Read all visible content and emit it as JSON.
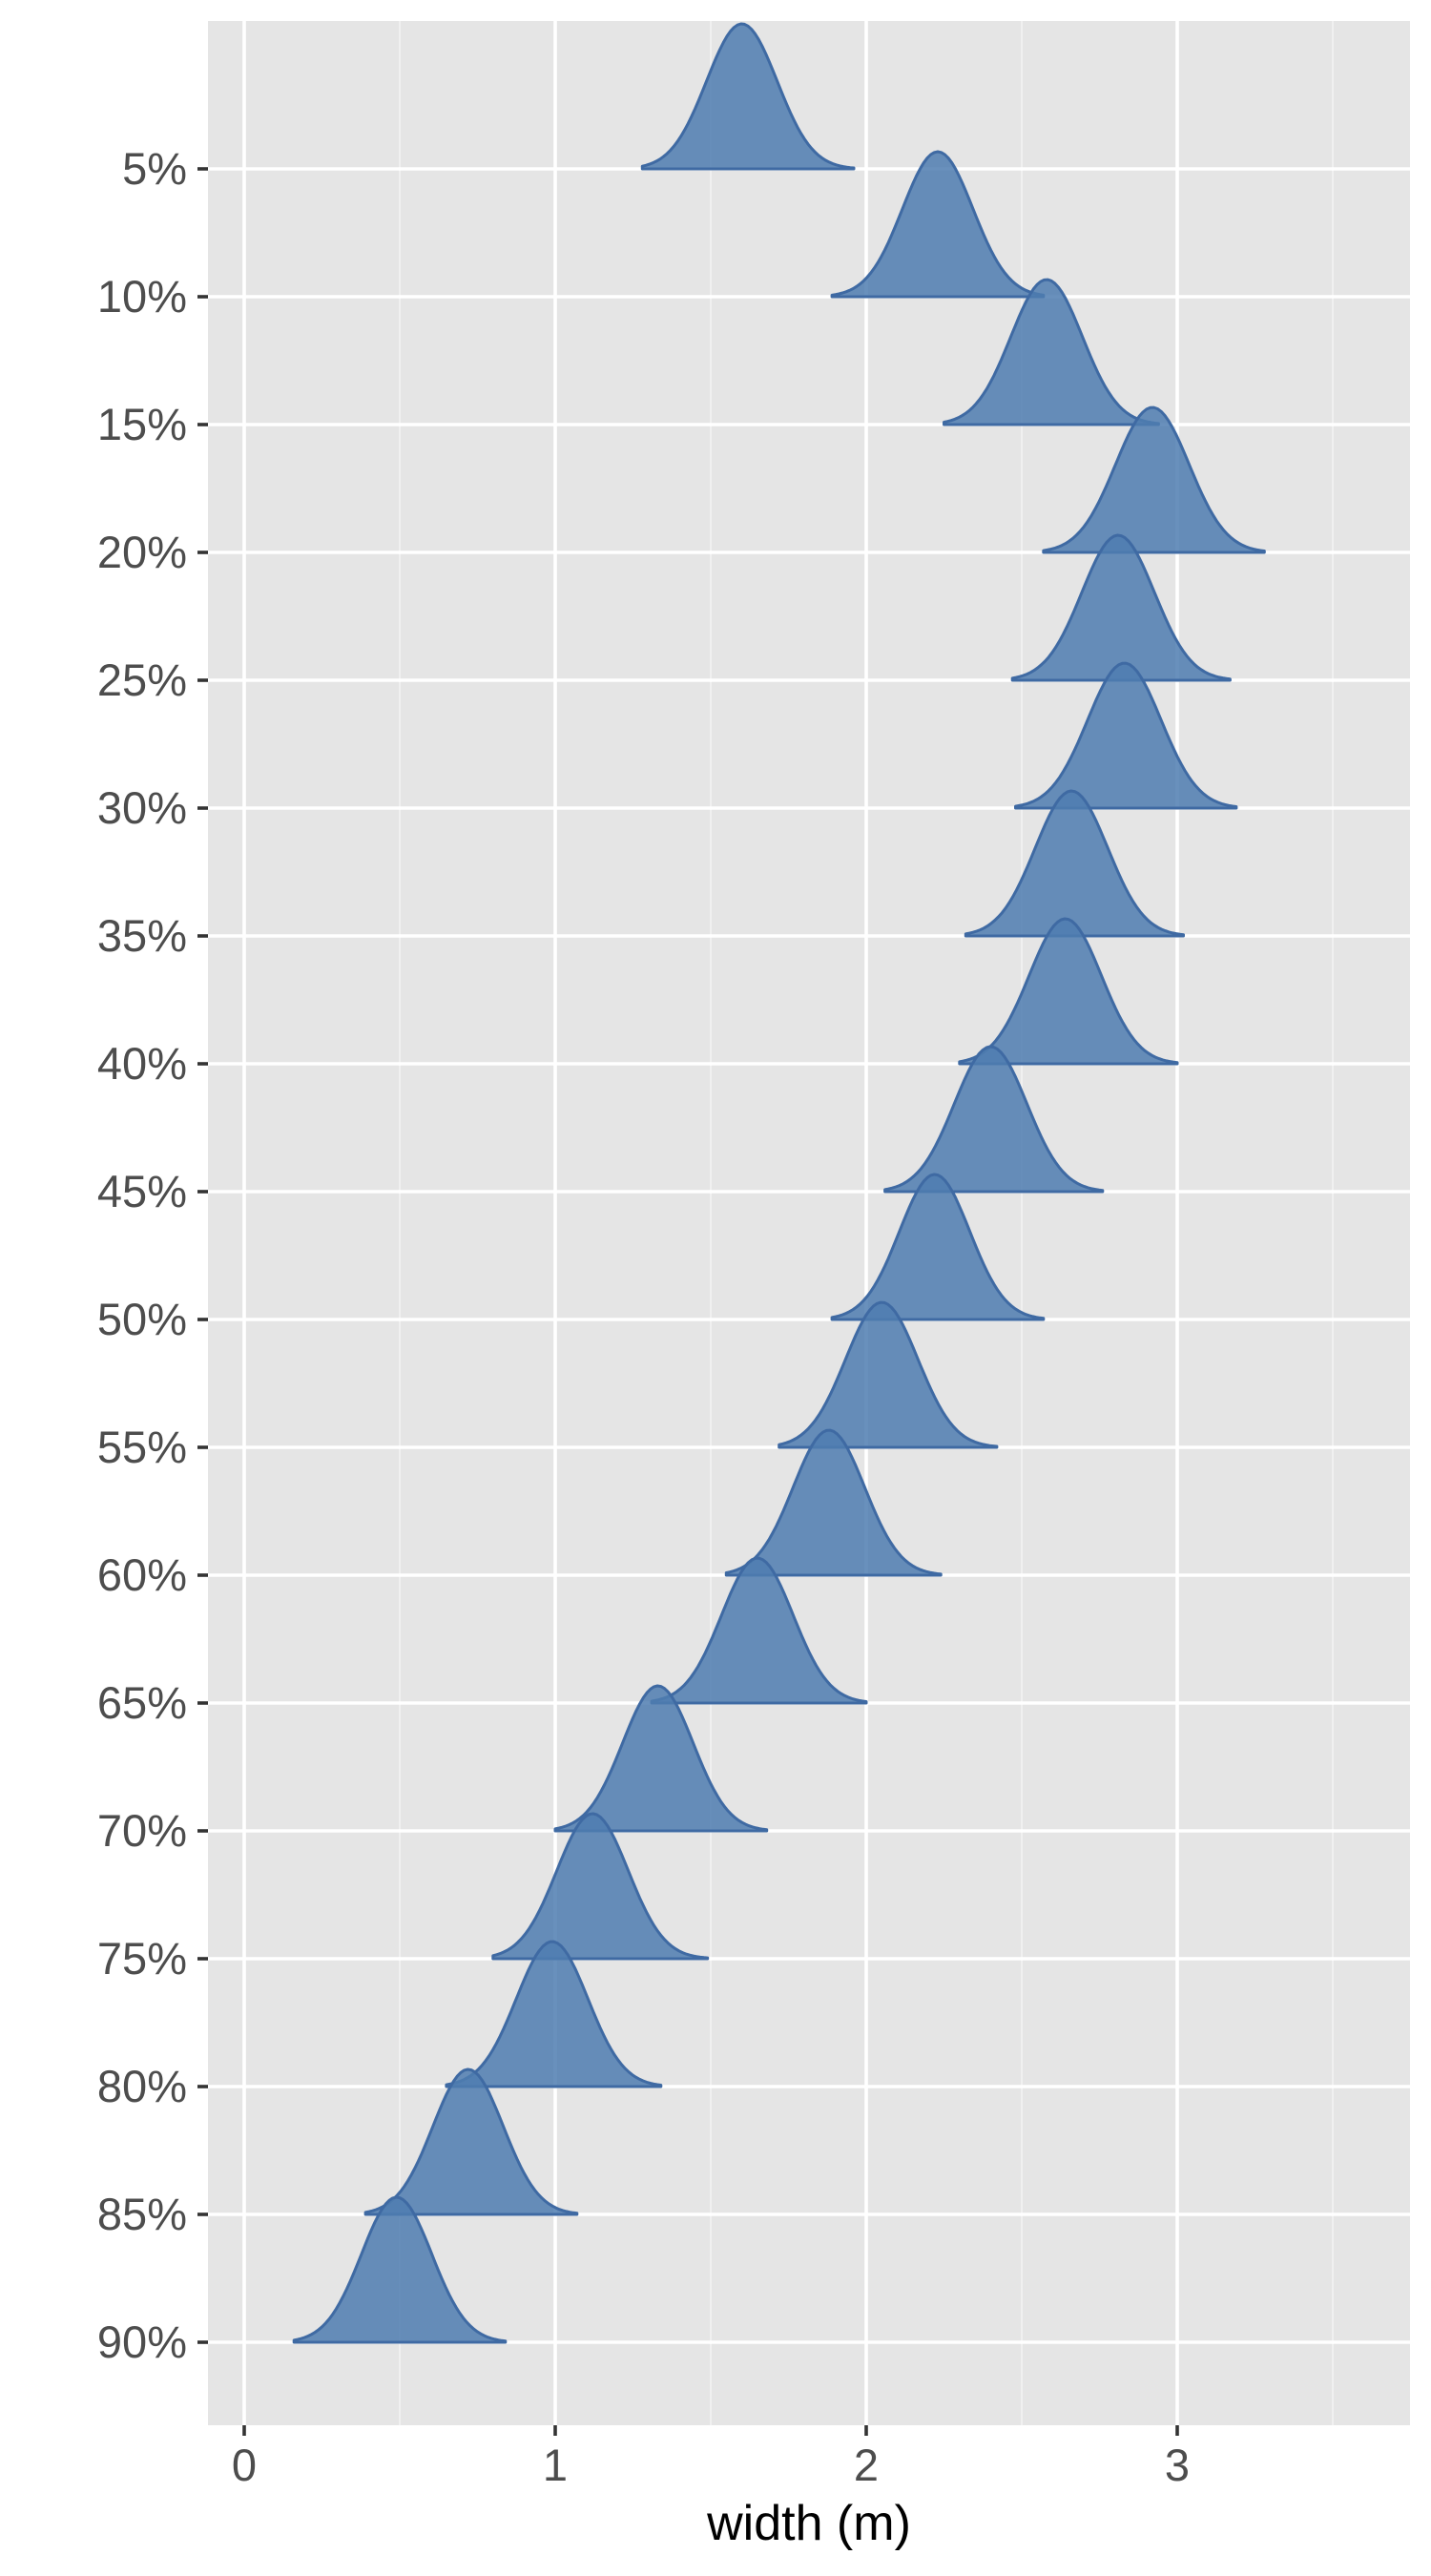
{
  "chart_data": {
    "type": "ridgeline",
    "xlabel": "width (m)",
    "ylabel": "",
    "xlim": [
      -0.12,
      3.75
    ],
    "xticks": [
      0,
      1,
      2,
      3
    ],
    "xtick_labels": [
      "0",
      "1",
      "2",
      "3"
    ],
    "categories": [
      "5%",
      "10%",
      "15%",
      "20%",
      "25%",
      "30%",
      "35%",
      "40%",
      "45%",
      "50%",
      "55%",
      "60%",
      "65%",
      "70%",
      "75%",
      "80%",
      "85%",
      "90%"
    ],
    "distributions": [
      {
        "category": "5%",
        "mode": 1.6,
        "min": 1.28,
        "max": 1.96
      },
      {
        "category": "10%",
        "mode": 2.23,
        "min": 1.89,
        "max": 2.57
      },
      {
        "category": "15%",
        "mode": 2.58,
        "min": 2.25,
        "max": 2.94
      },
      {
        "category": "20%",
        "mode": 2.92,
        "min": 2.57,
        "max": 3.28
      },
      {
        "category": "25%",
        "mode": 2.81,
        "min": 2.47,
        "max": 3.17
      },
      {
        "category": "30%",
        "mode": 2.83,
        "min": 2.48,
        "max": 3.19
      },
      {
        "category": "35%",
        "mode": 2.66,
        "min": 2.32,
        "max": 3.02
      },
      {
        "category": "40%",
        "mode": 2.64,
        "min": 2.3,
        "max": 3.0
      },
      {
        "category": "45%",
        "mode": 2.4,
        "min": 2.06,
        "max": 2.76
      },
      {
        "category": "50%",
        "mode": 2.22,
        "min": 1.89,
        "max": 2.57
      },
      {
        "category": "55%",
        "mode": 2.05,
        "min": 1.72,
        "max": 2.42
      },
      {
        "category": "60%",
        "mode": 1.88,
        "min": 1.55,
        "max": 2.24
      },
      {
        "category": "65%",
        "mode": 1.65,
        "min": 1.31,
        "max": 2.0
      },
      {
        "category": "70%",
        "mode": 1.33,
        "min": 1.0,
        "max": 1.68
      },
      {
        "category": "75%",
        "mode": 1.12,
        "min": 0.8,
        "max": 1.49
      },
      {
        "category": "80%",
        "mode": 0.99,
        "min": 0.65,
        "max": 1.34
      },
      {
        "category": "85%",
        "mode": 0.72,
        "min": 0.39,
        "max": 1.07
      },
      {
        "category": "90%",
        "mode": 0.49,
        "min": 0.16,
        "max": 0.84
      }
    ],
    "fill_color": "#4f7cb0",
    "line_color": "#3f6aa3",
    "panel_background": "#e5e5e5",
    "grid_color": "#ffffff",
    "grid": true,
    "legend": "none"
  }
}
